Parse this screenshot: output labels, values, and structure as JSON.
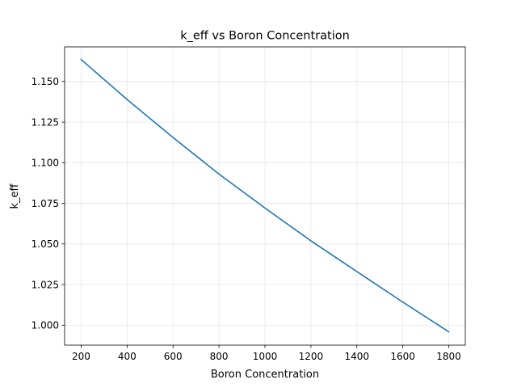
{
  "chart_data": {
    "type": "line",
    "title": "k_eff vs Boron Concentration",
    "xlabel": "Boron Concentration",
    "ylabel": "k_eff",
    "xlim": [
      128,
      1872
    ],
    "ylim": [
      0.9877,
      1.1713
    ],
    "xticks": [
      200,
      400,
      600,
      800,
      1000,
      1200,
      1400,
      1600,
      1800
    ],
    "xtick_labels": [
      "200",
      "400",
      "600",
      "800",
      "1000",
      "1200",
      "1400",
      "1600",
      "1800"
    ],
    "yticks": [
      1.0,
      1.025,
      1.05,
      1.075,
      1.1,
      1.125,
      1.15
    ],
    "ytick_labels": [
      "1.000",
      "1.025",
      "1.050",
      "1.075",
      "1.100",
      "1.125",
      "1.150"
    ],
    "grid": true,
    "series": [
      {
        "name": "k_eff",
        "color": "#1f77b4",
        "x": [
          200,
          400,
          600,
          800,
          1000,
          1200,
          1400,
          1600,
          1800
        ],
        "y": [
          1.1635,
          1.1389,
          1.1155,
          1.093,
          1.0721,
          1.0519,
          1.033,
          1.0142,
          0.9959
        ]
      }
    ]
  }
}
